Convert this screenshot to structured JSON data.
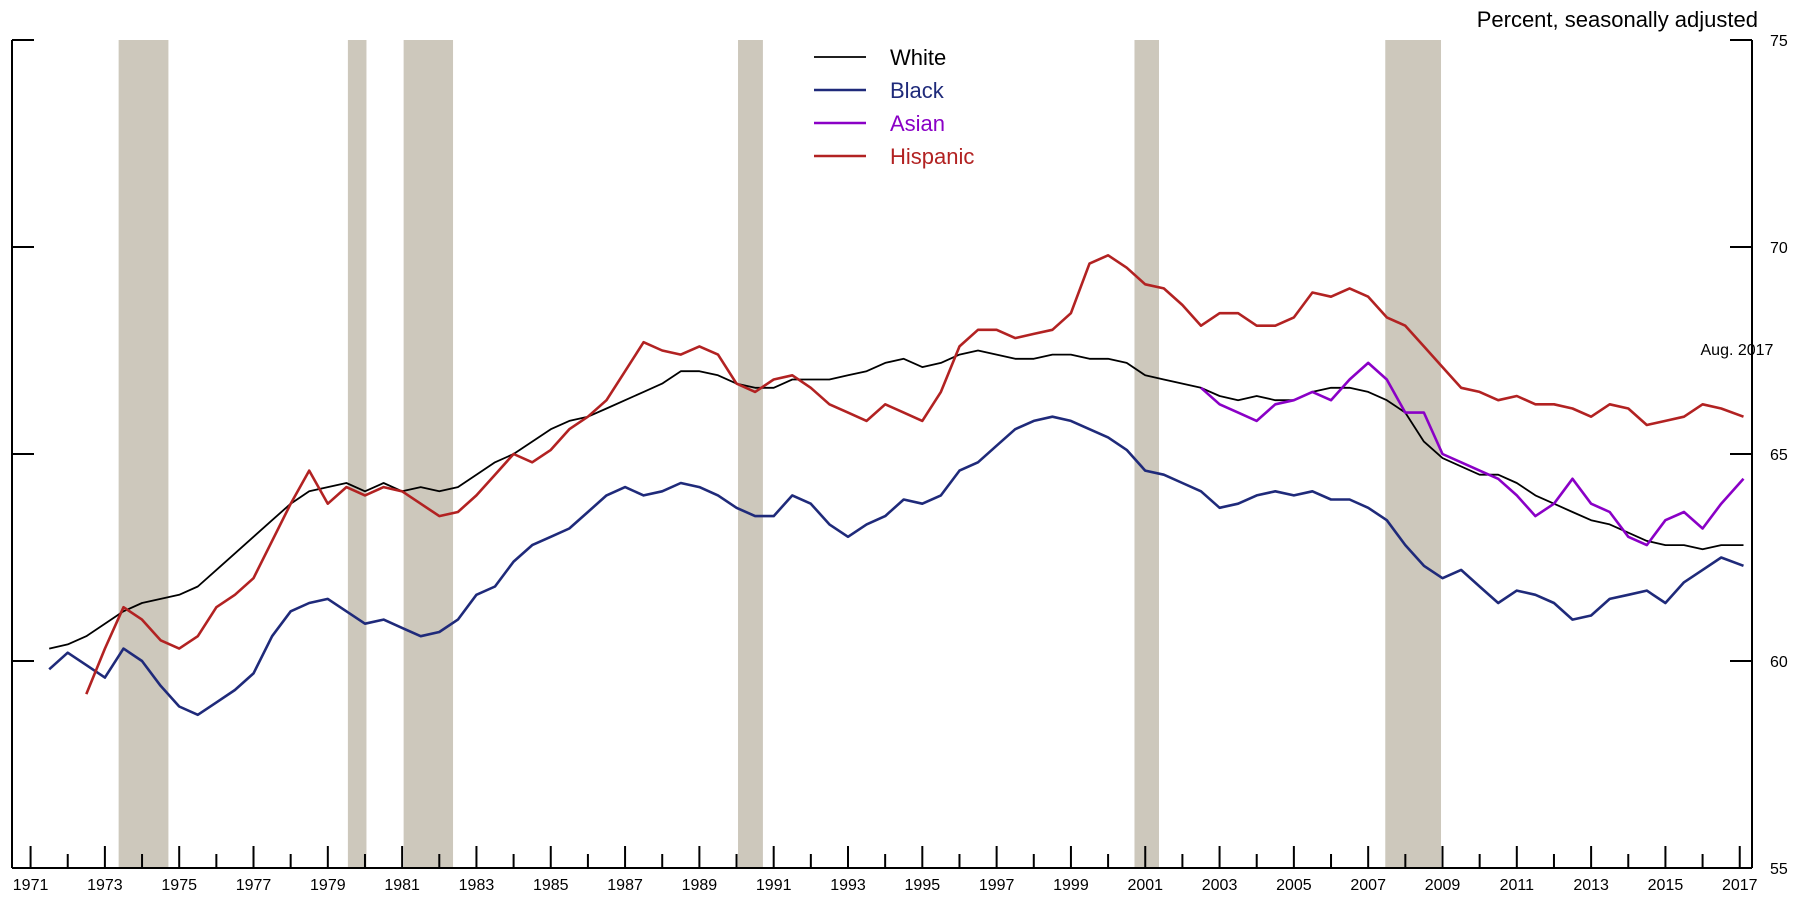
{
  "chart_data": {
    "type": "line",
    "title": "",
    "xlabel": "",
    "ylabel": "Percent, seasonally adjusted",
    "ylim": [
      55,
      75
    ],
    "xlim": [
      1971,
      2017.83
    ],
    "y_ticks": [
      "55",
      "60",
      "65",
      "70",
      "75"
    ],
    "x_tick_labels": [
      "1971",
      "1973",
      "1975",
      "1977",
      "1979",
      "1981",
      "1983",
      "1985",
      "1987",
      "1989",
      "1991",
      "1993",
      "1995",
      "1997",
      "1999",
      "2001",
      "2003",
      "2005",
      "2007",
      "2009",
      "2011",
      "2013",
      "2015",
      "2017"
    ],
    "legend_position": "top-center",
    "annotation": {
      "text": "Aug. 2017",
      "x": 2017.6,
      "y": 67.3
    },
    "recessions": [
      {
        "start": 1973.87,
        "end": 1975.21
      },
      {
        "start": 1980.04,
        "end": 1980.54
      },
      {
        "start": 1981.54,
        "end": 1982.87
      },
      {
        "start": 1990.54,
        "end": 1991.21
      },
      {
        "start": 2001.21,
        "end": 2001.87
      },
      {
        "start": 2007.96,
        "end": 2009.46
      }
    ],
    "series": [
      {
        "name": "White",
        "color": "#000000",
        "x": [
          1972,
          1972.5,
          1973,
          1973.5,
          1974,
          1974.5,
          1975,
          1975.5,
          1976,
          1976.5,
          1977,
          1977.5,
          1978,
          1978.5,
          1979,
          1979.5,
          1980,
          1980.5,
          1981,
          1981.5,
          1982,
          1982.5,
          1983,
          1983.5,
          1984,
          1984.5,
          1985,
          1985.5,
          1986,
          1986.5,
          1987,
          1987.5,
          1988,
          1988.5,
          1989,
          1989.5,
          1990,
          1990.5,
          1991,
          1991.5,
          1992,
          1992.5,
          1993,
          1993.5,
          1994,
          1994.5,
          1995,
          1995.5,
          1996,
          1996.5,
          1997,
          1997.5,
          1998,
          1998.5,
          1999,
          1999.5,
          2000,
          2000.5,
          2001,
          2001.5,
          2002,
          2002.5,
          2003,
          2003.5,
          2004,
          2004.5,
          2005,
          2005.5,
          2006,
          2006.5,
          2007,
          2007.5,
          2008,
          2008.5,
          2009,
          2009.5,
          2010,
          2010.5,
          2011,
          2011.5,
          2012,
          2012.5,
          2013,
          2013.5,
          2014,
          2014.5,
          2015,
          2015.5,
          2016,
          2016.5,
          2017,
          2017.6
        ],
        "values": [
          60.3,
          60.4,
          60.6,
          60.9,
          61.2,
          61.4,
          61.5,
          61.6,
          61.8,
          62.2,
          62.6,
          63.0,
          63.4,
          63.8,
          64.1,
          64.2,
          64.3,
          64.1,
          64.3,
          64.1,
          64.2,
          64.1,
          64.2,
          64.5,
          64.8,
          65.0,
          65.3,
          65.6,
          65.8,
          65.9,
          66.1,
          66.3,
          66.5,
          66.7,
          67.0,
          67.0,
          66.9,
          66.7,
          66.6,
          66.6,
          66.8,
          66.8,
          66.8,
          66.9,
          67.0,
          67.2,
          67.3,
          67.1,
          67.2,
          67.4,
          67.5,
          67.4,
          67.3,
          67.3,
          67.4,
          67.4,
          67.3,
          67.3,
          67.2,
          66.9,
          66.8,
          66.7,
          66.6,
          66.4,
          66.3,
          66.4,
          66.3,
          66.3,
          66.5,
          66.6,
          66.6,
          66.5,
          66.3,
          66.0,
          65.3,
          64.9,
          64.7,
          64.5,
          64.5,
          64.3,
          64.0,
          63.8,
          63.6,
          63.4,
          63.3,
          63.1,
          62.9,
          62.8,
          62.8,
          62.7,
          62.8,
          62.8
        ]
      },
      {
        "name": "Black",
        "color": "#1f2a7a",
        "x": [
          1972,
          1972.5,
          1973,
          1973.5,
          1974,
          1974.5,
          1975,
          1975.5,
          1976,
          1976.5,
          1977,
          1977.5,
          1978,
          1978.5,
          1979,
          1979.5,
          1980,
          1980.5,
          1981,
          1981.5,
          1982,
          1982.5,
          1983,
          1983.5,
          1984,
          1984.5,
          1985,
          1985.5,
          1986,
          1986.5,
          1987,
          1987.5,
          1988,
          1988.5,
          1989,
          1989.5,
          1990,
          1990.5,
          1991,
          1991.5,
          1992,
          1992.5,
          1993,
          1993.5,
          1994,
          1994.5,
          1995,
          1995.5,
          1996,
          1996.5,
          1997,
          1997.5,
          1998,
          1998.5,
          1999,
          1999.5,
          2000,
          2000.5,
          2001,
          2001.5,
          2002,
          2002.5,
          2003,
          2003.5,
          2004,
          2004.5,
          2005,
          2005.5,
          2006,
          2006.5,
          2007,
          2007.5,
          2008,
          2008.5,
          2009,
          2009.5,
          2010,
          2010.5,
          2011,
          2011.5,
          2012,
          2012.5,
          2013,
          2013.5,
          2014,
          2014.5,
          2015,
          2015.5,
          2016,
          2016.5,
          2017,
          2017.6
        ],
        "values": [
          59.8,
          60.2,
          59.9,
          59.6,
          60.3,
          60.0,
          59.4,
          58.9,
          58.7,
          59.0,
          59.3,
          59.7,
          60.6,
          61.2,
          61.4,
          61.5,
          61.2,
          60.9,
          61.0,
          60.8,
          60.6,
          60.7,
          61.0,
          61.6,
          61.8,
          62.4,
          62.8,
          63.0,
          63.2,
          63.6,
          64.0,
          64.2,
          64.0,
          64.1,
          64.3,
          64.2,
          64.0,
          63.7,
          63.5,
          63.5,
          64.0,
          63.8,
          63.3,
          63.0,
          63.3,
          63.5,
          63.9,
          63.8,
          64.0,
          64.6,
          64.8,
          65.2,
          65.6,
          65.8,
          65.9,
          65.8,
          65.6,
          65.4,
          65.1,
          64.6,
          64.5,
          64.3,
          64.1,
          63.7,
          63.8,
          64.0,
          64.1,
          64.0,
          64.1,
          63.9,
          63.9,
          63.7,
          63.4,
          62.8,
          62.3,
          62.0,
          62.2,
          61.8,
          61.4,
          61.7,
          61.6,
          61.4,
          61.0,
          61.1,
          61.5,
          61.6,
          61.7,
          61.4,
          61.9,
          62.2,
          62.5,
          62.3
        ]
      },
      {
        "name": "Asian",
        "color": "#8a00c6",
        "x": [
          2003,
          2003.5,
          2004,
          2004.5,
          2005,
          2005.5,
          2006,
          2006.5,
          2007,
          2007.5,
          2008,
          2008.5,
          2009,
          2009.5,
          2010,
          2010.5,
          2011,
          2011.5,
          2012,
          2012.5,
          2013,
          2013.5,
          2014,
          2014.5,
          2015,
          2015.5,
          2016,
          2016.5,
          2017,
          2017.6
        ],
        "values": [
          66.6,
          66.2,
          66.0,
          65.8,
          66.2,
          66.3,
          66.5,
          66.3,
          66.8,
          67.2,
          66.8,
          66.0,
          66.0,
          65.0,
          64.8,
          64.6,
          64.4,
          64.0,
          63.5,
          63.8,
          64.4,
          63.8,
          63.6,
          63.0,
          62.8,
          63.4,
          63.6,
          63.2,
          63.8,
          64.4
        ]
      },
      {
        "name": "Hispanic",
        "color": "#b22222",
        "x": [
          1973,
          1973.5,
          1974,
          1974.5,
          1975,
          1975.5,
          1976,
          1976.5,
          1977,
          1977.5,
          1978,
          1978.5,
          1979,
          1979.5,
          1980,
          1980.5,
          1981,
          1981.5,
          1982,
          1982.5,
          1983,
          1983.5,
          1984,
          1984.5,
          1985,
          1985.5,
          1986,
          1986.5,
          1987,
          1987.5,
          1988,
          1988.5,
          1989,
          1989.5,
          1990,
          1990.5,
          1991,
          1991.5,
          1992,
          1992.5,
          1993,
          1993.5,
          1994,
          1994.5,
          1995,
          1995.5,
          1996,
          1996.5,
          1997,
          1997.5,
          1998,
          1998.5,
          1999,
          1999.5,
          2000,
          2000.5,
          2001,
          2001.5,
          2002,
          2002.5,
          2003,
          2003.5,
          2004,
          2004.5,
          2005,
          2005.5,
          2006,
          2006.5,
          2007,
          2007.5,
          2008,
          2008.5,
          2009,
          2009.5,
          2010,
          2010.5,
          2011,
          2011.5,
          2012,
          2012.5,
          2013,
          2013.5,
          2014,
          2014.5,
          2015,
          2015.5,
          2016,
          2016.5,
          2017,
          2017.6
        ],
        "values": [
          59.2,
          60.3,
          61.3,
          61.0,
          60.5,
          60.3,
          60.6,
          61.3,
          61.6,
          62.0,
          62.9,
          63.8,
          64.6,
          63.8,
          64.2,
          64.0,
          64.2,
          64.1,
          63.8,
          63.5,
          63.6,
          64.0,
          64.5,
          65.0,
          64.8,
          65.1,
          65.6,
          65.9,
          66.3,
          67.0,
          67.7,
          67.5,
          67.4,
          67.6,
          67.4,
          66.7,
          66.5,
          66.8,
          66.9,
          66.6,
          66.2,
          66.0,
          65.8,
          66.2,
          66.0,
          65.8,
          66.5,
          67.6,
          68.0,
          68.0,
          67.8,
          67.9,
          68.0,
          68.4,
          69.6,
          69.8,
          69.5,
          69.1,
          69.0,
          68.6,
          68.1,
          68.4,
          68.4,
          68.1,
          68.1,
          68.3,
          68.9,
          68.8,
          69.0,
          68.8,
          68.3,
          68.1,
          67.6,
          67.1,
          66.6,
          66.5,
          66.3,
          66.4,
          66.2,
          66.2,
          66.1,
          65.9,
          66.2,
          66.1,
          65.7,
          65.8,
          65.9,
          66.2,
          66.1,
          65.9
        ]
      }
    ]
  }
}
